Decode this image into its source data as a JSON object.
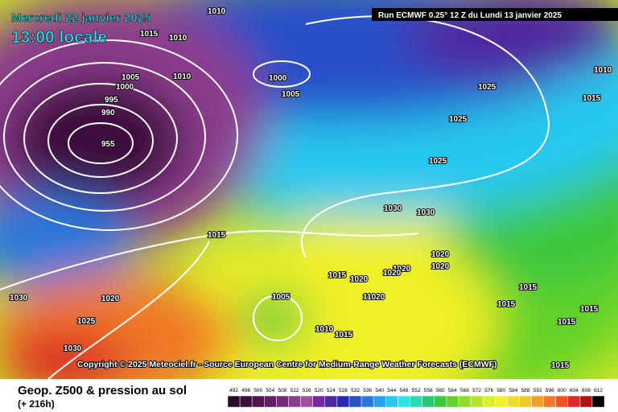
{
  "header": {
    "date": "Mercredi 22 janvier 2025",
    "time": "13:00 locale",
    "run": "Run ECMWF 0.25° 12 Z du Lundi 13 janvier 2025"
  },
  "copyright": "Copyright © 2025 Meteociel.fr - Source European Centre for Medium-Range Weather Forecasts (ECMWF)",
  "footer": {
    "title": "Geop. Z500 & pression au sol",
    "lead": "(+ 216h)"
  },
  "legend": {
    "labels": [
      "492",
      "496",
      "500",
      "504",
      "508",
      "512",
      "516",
      "520",
      "524",
      "528",
      "532",
      "536",
      "540",
      "544",
      "548",
      "552",
      "556",
      "560",
      "564",
      "568",
      "572",
      "576",
      "580",
      "584",
      "588",
      "592",
      "596",
      "600",
      "604",
      "608",
      "612"
    ],
    "colors": [
      "#2a0a2a",
      "#3c0f3c",
      "#501450",
      "#641e64",
      "#782878",
      "#8c3c8c",
      "#a050a0",
      "#7828a0",
      "#5028a0",
      "#2828b4",
      "#2850c8",
      "#2878dc",
      "#28a0f0",
      "#28c8f0",
      "#28e6e6",
      "#28dcb4",
      "#28c878",
      "#3cc83c",
      "#64d228",
      "#8cdc28",
      "#b4e628",
      "#dcf028",
      "#f0f028",
      "#f0dc28",
      "#f0c828",
      "#f0a028",
      "#f07828",
      "#f05028",
      "#dc2828",
      "#b41414",
      "#000000"
    ]
  },
  "isobar_labels": [
    "1010",
    "1015",
    "1010",
    "1005",
    "1000",
    "1010",
    "1000",
    "995",
    "990",
    "1005",
    "955",
    "1025",
    "1025",
    "1025",
    "1030",
    "1030",
    "1015",
    "1020",
    "1020",
    "1020",
    "1015",
    "1020",
    "1020",
    "1015",
    "1015",
    "1030",
    "1020",
    "1005",
    "11020",
    "1025",
    "1010",
    "1015",
    "1030",
    "1015",
    "1015",
    "1010",
    "1015",
    "1015"
  ]
}
